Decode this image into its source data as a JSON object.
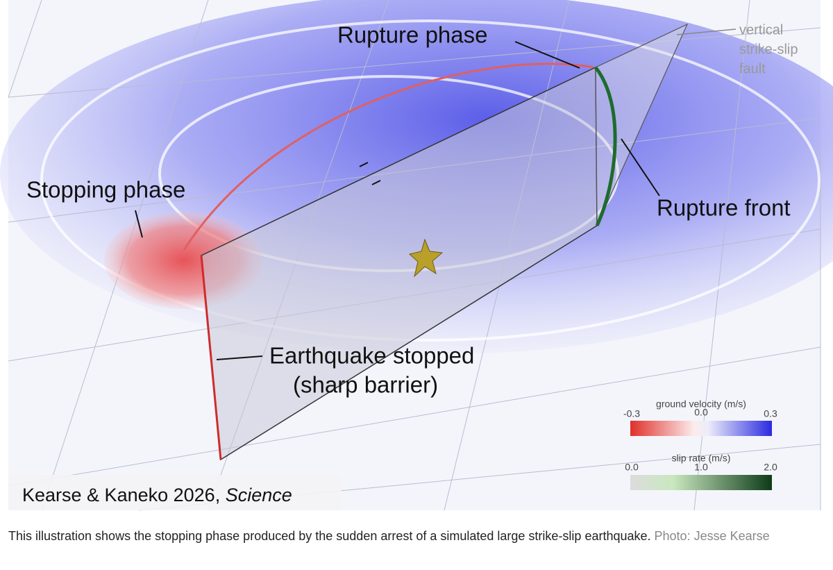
{
  "figure": {
    "annotations": {
      "rupture_phase": "Rupture phase",
      "fault": [
        "vertical",
        "strike-slip",
        "fault"
      ],
      "stopping_phase": "Stopping phase",
      "rupture_front": "Rupture front",
      "stopped": [
        "Earthquake stopped",
        "(sharp barrier)"
      ]
    },
    "legend": {
      "ground_velocity": {
        "title": "ground velocity (m/s)",
        "ticks": [
          "-0.3",
          "0.0",
          "0.3"
        ]
      },
      "slip_rate": {
        "title": "slip rate (m/s)",
        "ticks": [
          "0.0",
          "1.0",
          "2.0"
        ]
      }
    },
    "credit": {
      "authors": "Kearse & Kaneko 2026,",
      "journal": "Science"
    }
  },
  "caption": {
    "text": "This illustration shows the stopping phase produced by the sudden arrest of a simulated large strike-slip earthquake.",
    "photo_credit": "Photo: Jesse Kearse"
  }
}
